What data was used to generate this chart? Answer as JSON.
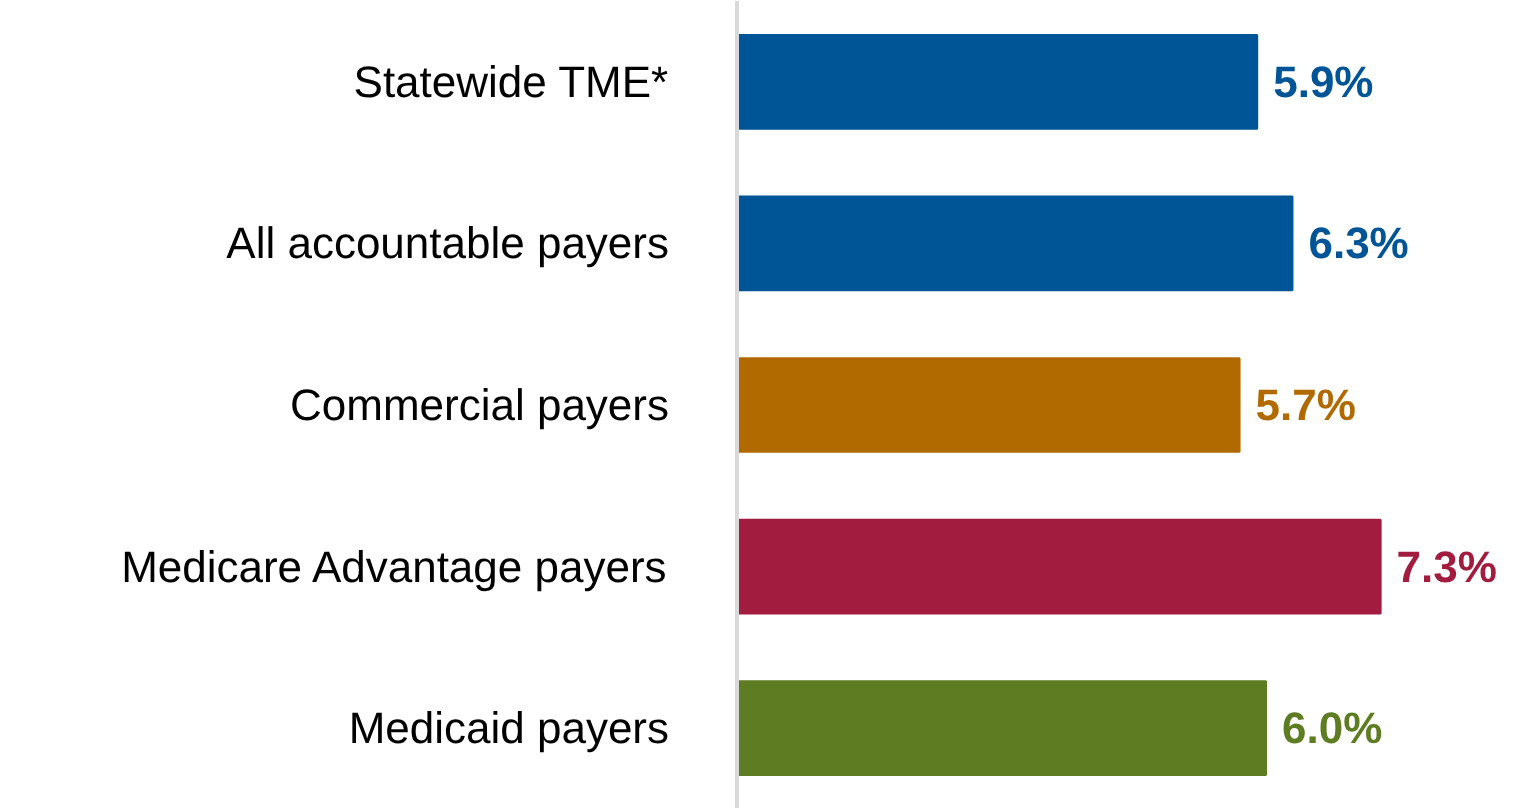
{
  "chart_data": {
    "type": "bar",
    "orientation": "horizontal",
    "categories": [
      "Statewide TME*",
      "All accountable payers",
      "Commercial payers",
      "Medicare Advantage payers",
      "Medicaid payers"
    ],
    "values": [
      5.9,
      6.3,
      5.7,
      7.3,
      6.0
    ],
    "value_labels": [
      "5.9%",
      "6.3%",
      "5.7%",
      "7.3%",
      "6.0%"
    ],
    "colors": [
      "#005596",
      "#005596",
      "#b06a00",
      "#a11c3f",
      "#5e7d23"
    ],
    "grid": false
  }
}
